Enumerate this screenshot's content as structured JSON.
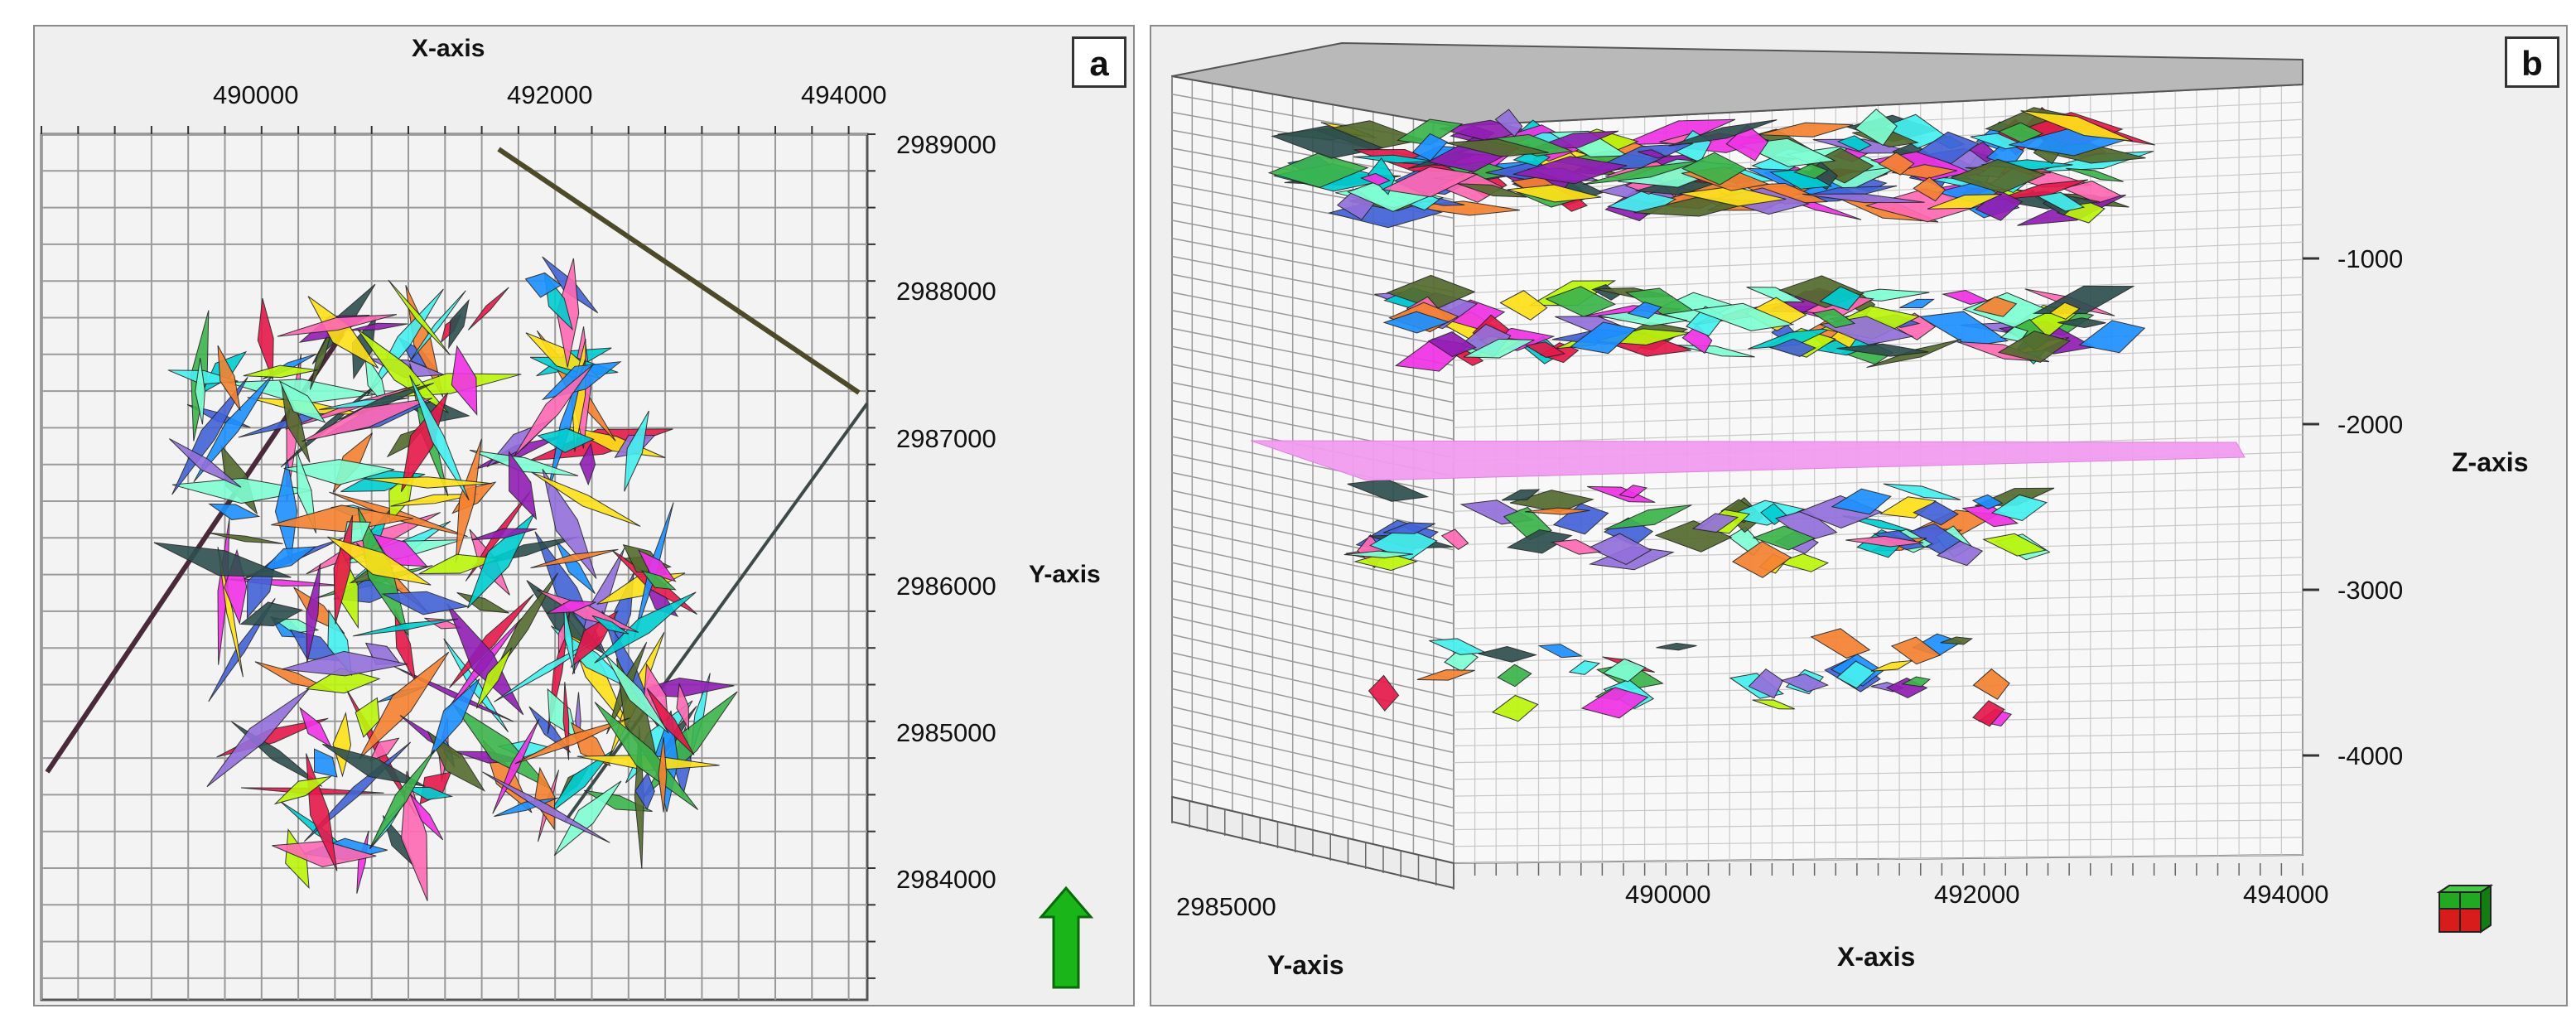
{
  "panel_a": {
    "letter": "a",
    "x_axis_title": "X-axis",
    "y_axis_title": "Y-axis",
    "x_ticks": [
      "490000",
      "492000",
      "494000"
    ],
    "y_ticks": [
      "2989000",
      "2988000",
      "2987000",
      "2986000",
      "2985000",
      "2984000"
    ],
    "north_arrow_icon": "north-arrow-icon",
    "north_arrow_color": "#19b519"
  },
  "panel_b": {
    "letter": "b",
    "x_axis_title": "X-axis",
    "y_axis_title": "Y-axis",
    "z_axis_title": "Z-axis",
    "x_ticks": [
      "490000",
      "492000",
      "494000"
    ],
    "y_ticks": [
      "2985000"
    ],
    "z_ticks": [
      "-1000",
      "-2000",
      "-3000",
      "-4000"
    ],
    "orientation_icon": "orientation-cube-icon",
    "horizon_color": "#f29cf0"
  },
  "colors": {
    "panel_background": "#efefef",
    "grid_line": "#9a9a9a",
    "fault_palette": [
      "#e6194b",
      "#3cb44b",
      "#ffe119",
      "#4363d8",
      "#f58231",
      "#911eb4",
      "#46f0f0",
      "#f032e6",
      "#bcf60c",
      "#2f4f4f",
      "#1e90ff",
      "#ff69b4",
      "#7fffd4",
      "#556b2f",
      "#9370db",
      "#00ced1"
    ]
  }
}
